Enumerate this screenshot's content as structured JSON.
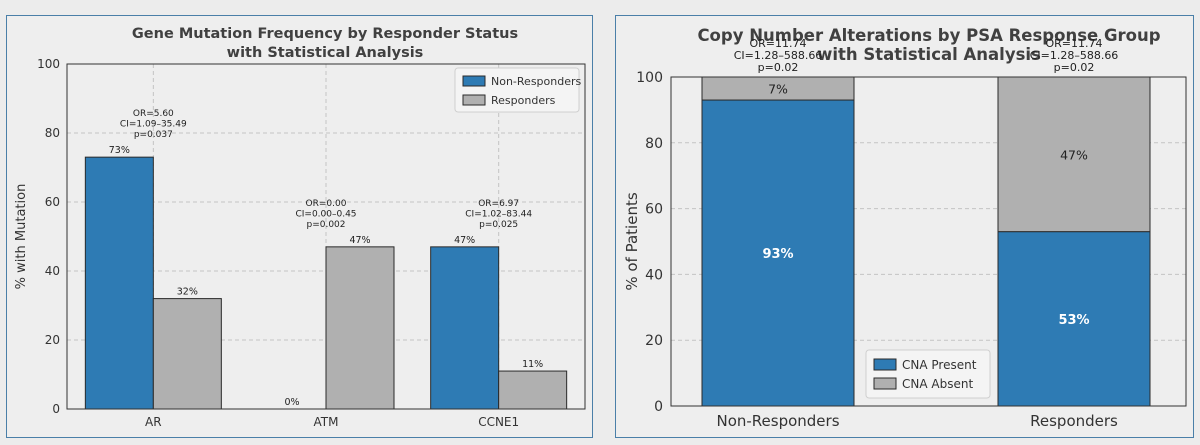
{
  "chart_data": [
    {
      "type": "bar",
      "title": [
        "Gene Mutation Frequency by Responder Status",
        "with Statistical Analysis"
      ],
      "xlabel": "",
      "ylabel": "% with Mutation",
      "ylim": [
        0,
        100
      ],
      "yticks": [
        "0",
        "20",
        "40",
        "60",
        "80",
        "100"
      ],
      "categories": [
        "AR",
        "ATM",
        "CCNE1"
      ],
      "series": [
        {
          "name": "Non-Responders",
          "color": "#2e7bb4",
          "values": [
            73,
            0,
            47
          ],
          "labels": [
            "73%",
            "0%",
            "47%"
          ]
        },
        {
          "name": "Responders",
          "color": "#b0b0b0",
          "values": [
            32,
            47,
            11
          ],
          "labels": [
            "32%",
            "47%",
            "11%"
          ]
        }
      ],
      "stats": [
        [
          "OR=5.60",
          "CI=1.09–35.49",
          "p=0.037"
        ],
        [
          "OR=0.00",
          "CI=0.00–0.45",
          "p=0.002"
        ],
        [
          "OR=6.97",
          "CI=1.02–83.44",
          "p=0.025"
        ]
      ],
      "grid": true,
      "legend": "top-right"
    },
    {
      "type": "stacked-bar",
      "title": [
        "Copy Number Alterations by PSA Response Group",
        "with Statistical Analysis"
      ],
      "xlabel": "",
      "ylabel": "% of Patients",
      "ylim": [
        0,
        100
      ],
      "yticks": [
        "0",
        "20",
        "40",
        "60",
        "80",
        "100"
      ],
      "categories": [
        "Non-Responders",
        "Responders"
      ],
      "series": [
        {
          "name": "CNA Present",
          "color": "#2e7bb4",
          "values": [
            93,
            53
          ],
          "labels": [
            "93%",
            "53%"
          ]
        },
        {
          "name": "CNA Absent",
          "color": "#b0b0b0",
          "values": [
            7,
            47
          ],
          "labels": [
            "7%",
            "47%"
          ]
        }
      ],
      "stats": [
        [
          "OR=11.74",
          "CI=1.28–588.66",
          "p=0.02"
        ],
        [
          "OR=11.74",
          "CI=1.28–588.66",
          "p=0.02"
        ]
      ],
      "grid": true,
      "legend": "bottom-center"
    }
  ]
}
